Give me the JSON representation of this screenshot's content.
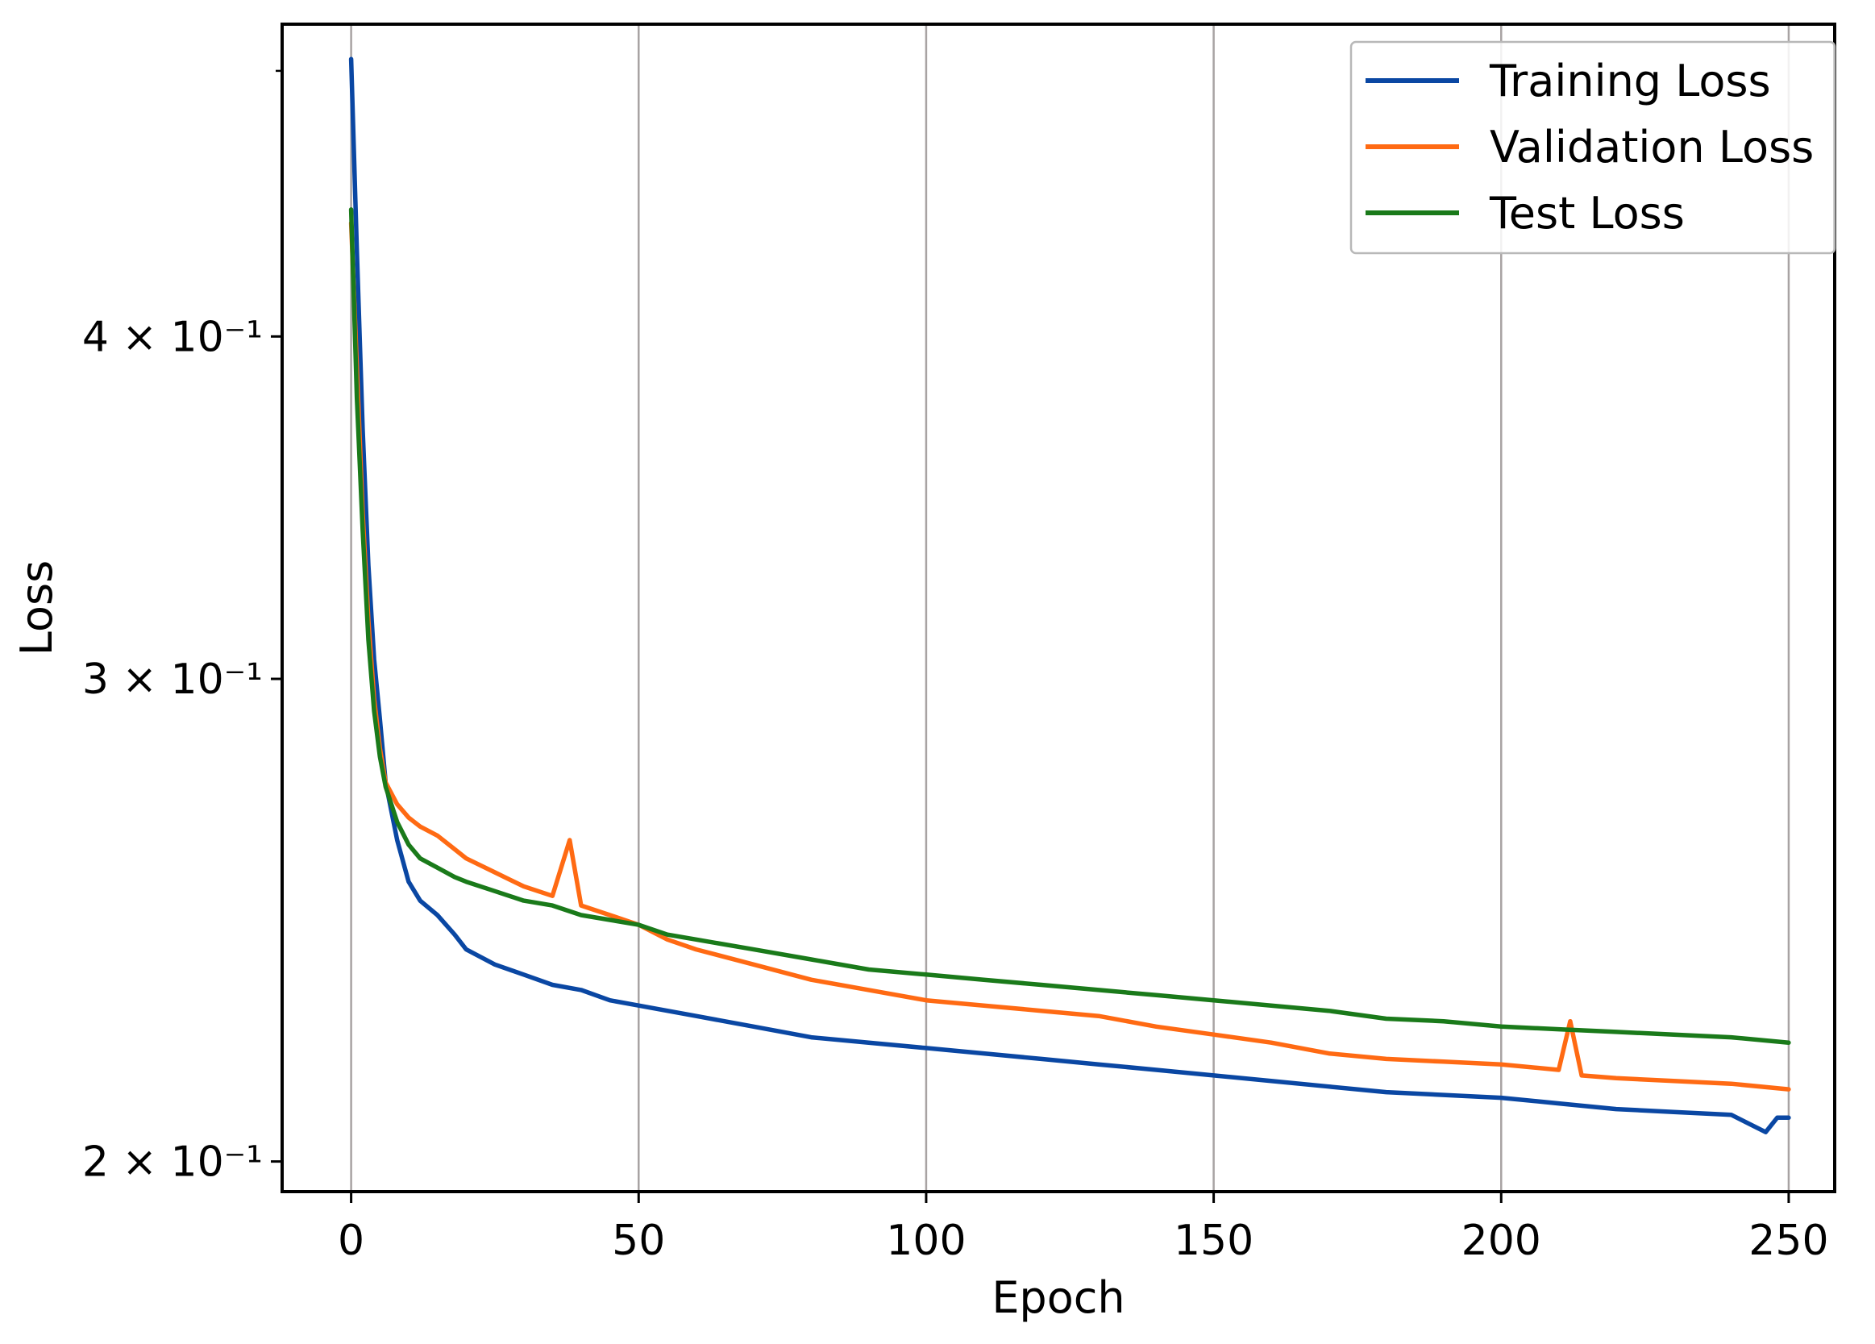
{
  "chart_data": {
    "type": "line",
    "title": "",
    "xlabel": "Epoch",
    "ylabel": "Loss",
    "xlim": [
      -12,
      258
    ],
    "ylim": [
      0.195,
      0.52
    ],
    "yscale": "log",
    "grid": "vertical",
    "legend_position": "top-right",
    "x_ticks": [
      0,
      50,
      100,
      150,
      200,
      250
    ],
    "x_tick_labels": [
      "0",
      "50",
      "100",
      "150",
      "200",
      "250"
    ],
    "y_ticks": [
      0.2,
      0.3,
      0.4
    ],
    "y_tick_labels": [
      "2 × 10⁻¹",
      "3 × 10⁻¹",
      "4 × 10⁻¹"
    ],
    "y_minor_ticks": [
      0.5
    ],
    "series": [
      {
        "name": "Training Loss",
        "color": "#0a47a3",
        "x": [
          0,
          1,
          2,
          3,
          4,
          5,
          6,
          8,
          10,
          12,
          15,
          18,
          20,
          25,
          30,
          35,
          40,
          45,
          50,
          55,
          60,
          70,
          80,
          90,
          100,
          110,
          120,
          130,
          140,
          150,
          160,
          170,
          180,
          190,
          200,
          210,
          220,
          230,
          240,
          246,
          248,
          250
        ],
        "values": [
          0.505,
          0.43,
          0.37,
          0.33,
          0.305,
          0.29,
          0.275,
          0.262,
          0.253,
          0.249,
          0.246,
          0.242,
          0.239,
          0.236,
          0.234,
          0.232,
          0.231,
          0.229,
          0.228,
          0.227,
          0.226,
          0.224,
          0.222,
          0.221,
          0.22,
          0.219,
          0.218,
          0.217,
          0.216,
          0.215,
          0.214,
          0.213,
          0.212,
          0.2115,
          0.211,
          0.21,
          0.209,
          0.2085,
          0.208,
          0.205,
          0.2075,
          0.2075
        ]
      },
      {
        "name": "Validation Loss",
        "color": "#ff6a13",
        "x": [
          0,
          1,
          2,
          3,
          4,
          5,
          6,
          8,
          10,
          12,
          15,
          18,
          20,
          25,
          30,
          35,
          38,
          40,
          45,
          50,
          55,
          60,
          70,
          80,
          90,
          100,
          110,
          120,
          130,
          140,
          150,
          160,
          170,
          180,
          190,
          200,
          210,
          212,
          214,
          220,
          230,
          240,
          250
        ],
        "values": [
          0.44,
          0.39,
          0.345,
          0.315,
          0.295,
          0.283,
          0.275,
          0.27,
          0.267,
          0.265,
          0.263,
          0.26,
          0.258,
          0.255,
          0.252,
          0.25,
          0.262,
          0.248,
          0.246,
          0.244,
          0.241,
          0.239,
          0.236,
          0.233,
          0.231,
          0.229,
          0.228,
          0.227,
          0.226,
          0.224,
          0.2225,
          0.221,
          0.219,
          0.218,
          0.2175,
          0.217,
          0.216,
          0.225,
          0.215,
          0.2145,
          0.214,
          0.2135,
          0.2125
        ]
      },
      {
        "name": "Test Loss",
        "color": "#1a7a1a",
        "x": [
          0,
          1,
          2,
          3,
          4,
          5,
          6,
          8,
          10,
          12,
          15,
          18,
          20,
          25,
          30,
          35,
          40,
          45,
          50,
          55,
          60,
          70,
          80,
          90,
          100,
          110,
          120,
          130,
          140,
          150,
          160,
          170,
          180,
          190,
          200,
          210,
          220,
          230,
          240,
          250
        ],
        "values": [
          0.445,
          0.38,
          0.34,
          0.31,
          0.292,
          0.281,
          0.274,
          0.266,
          0.261,
          0.258,
          0.256,
          0.254,
          0.253,
          0.251,
          0.249,
          0.248,
          0.246,
          0.245,
          0.244,
          0.242,
          0.241,
          0.239,
          0.237,
          0.235,
          0.234,
          0.233,
          0.232,
          0.231,
          0.23,
          0.229,
          0.228,
          0.227,
          0.2255,
          0.225,
          0.224,
          0.2235,
          0.223,
          0.2225,
          0.222,
          0.221
        ]
      }
    ]
  }
}
